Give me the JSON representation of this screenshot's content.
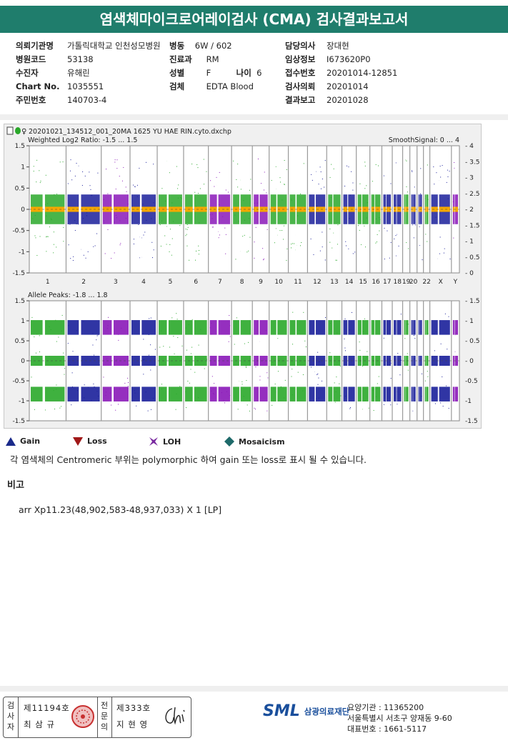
{
  "title": "염색체마이크로어레이검사 (CMA) 검사결과보고서",
  "info": {
    "col1": [
      {
        "label": "의뢰기관명",
        "value": "가톨릭대학교 인천성모병원"
      },
      {
        "label": "병원코드",
        "value": "53138"
      },
      {
        "label": "수진자",
        "value": "유해린"
      },
      {
        "label": "Chart No.",
        "value": "1035551"
      },
      {
        "label": "주민번호",
        "value": "140703-4"
      }
    ],
    "ward": {
      "label": "병동",
      "value": "6W / 602"
    },
    "dept": {
      "label": "진료과",
      "value": "RM"
    },
    "sex": {
      "label": "성별",
      "value": "F"
    },
    "age": {
      "label": "나이",
      "value": "6"
    },
    "specimen": {
      "label": "검체",
      "value": "EDTA Blood"
    },
    "col3": [
      {
        "label": "담당의사",
        "value": "장대현"
      },
      {
        "label": "임상정보",
        "value": "I673620P0"
      },
      {
        "label": "접수번호",
        "value": "20201014-12851"
      },
      {
        "label": "검사의뢰",
        "value": "20201014"
      },
      {
        "label": "결과보고",
        "value": "20201028"
      }
    ]
  },
  "plot": {
    "filename": "20201021_134512_001_20MA 1625 YU HAE RIN.cyto.dxchp",
    "top_title": "Weighted Log2 Ratio: -1.5 ... 1.5",
    "top_right_title": "SmoothSignal: 0 ... 4",
    "top_left_ticks": [
      "1.5",
      "1",
      "0.5",
      "0",
      "-0.5",
      "-1",
      "-1.5"
    ],
    "top_right_ticks": [
      "4",
      "3.5",
      "3",
      "2.5",
      "2",
      "1.5",
      "1",
      "0.5",
      "0"
    ],
    "bottom_title": "Allele Peaks: -1.8 ... 1.8",
    "bottom_left_ticks": [
      "1.5",
      "1",
      "0.5",
      "0",
      "-0.5",
      "-1",
      "-1.5"
    ],
    "bottom_right_ticks": [
      "1.5",
      "1",
      "0.5",
      "0",
      "-0.5",
      "-1",
      "-1.5"
    ],
    "chromosomes": [
      "1",
      "2",
      "3",
      "4",
      "5",
      "6",
      "7",
      "8",
      "9",
      "10",
      "11",
      "12",
      "13",
      "14",
      "15",
      "16",
      "17",
      "18",
      "19",
      "20",
      "",
      "22",
      "X",
      "Y"
    ],
    "colors": {
      "green": "#2aa82a",
      "blue": "#1a1f9a",
      "purple": "#8a18b8",
      "orange": "#f5a800",
      "gray": "#9a9a9a"
    }
  },
  "legend": [
    {
      "icon": "gain-triangle",
      "label": "Gain",
      "color": "#1a2a8a"
    },
    {
      "icon": "loss-triangle",
      "label": "Loss",
      "color": "#a01818"
    },
    {
      "icon": "loh-star",
      "label": "LOH",
      "color": "#7a2aa0"
    },
    {
      "icon": "mosaicism-diamond",
      "label": "Mosaicism",
      "color": "#1e6a6a"
    }
  ],
  "note": "각 염색체의 Centromeric 부위는 polymorphic 하여 gain 또는 loss로 표시 될 수 있습니다.",
  "remarks_label": "비고",
  "result": "arr Xp11.23(48,902,583-48,937,033) X 1 [LP]",
  "footer": {
    "inspector_label": "검사자",
    "inspector_license": "제11194호",
    "inspector_name": "최 삼 규",
    "specialist_label": "전문의",
    "specialist_license": "제333호",
    "specialist_name": "지 현 영",
    "org_logo": "SML",
    "org_name": "삼광의료재단",
    "addr1": "요양기관 : 11365200",
    "addr2": "서울특별시 서초구 양재동 9-60",
    "addr3": "대표번호 : 1661-5117"
  }
}
